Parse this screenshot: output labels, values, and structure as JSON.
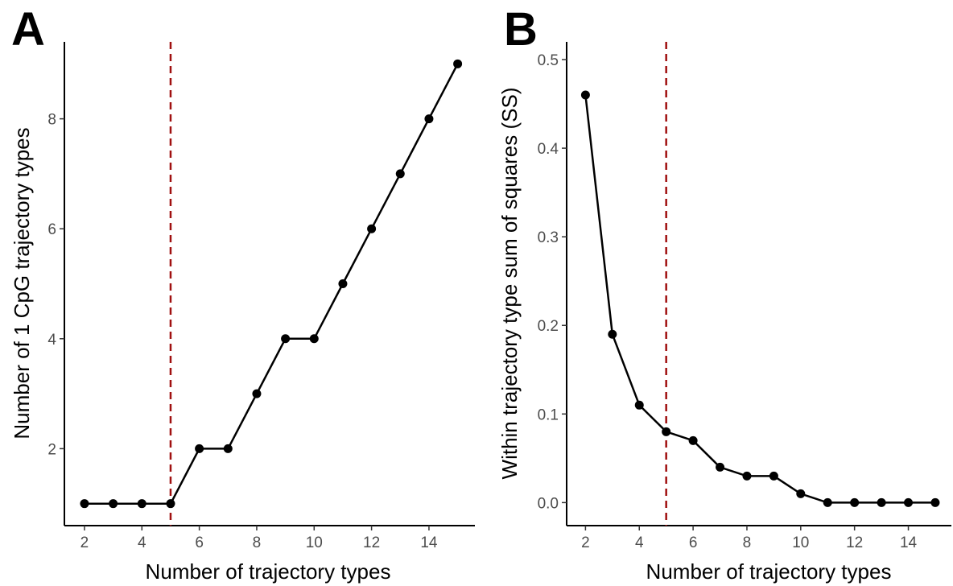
{
  "chart_data": [
    {
      "panel": "A",
      "type": "line",
      "xlabel": "Number of trajectory types",
      "ylabel": "Number of 1 CpG trajectory types",
      "x": [
        2,
        3,
        4,
        5,
        6,
        7,
        8,
        9,
        10,
        11,
        12,
        13,
        14,
        15
      ],
      "values": [
        1,
        1,
        1,
        1,
        2,
        2,
        3,
        4,
        4,
        5,
        6,
        7,
        8,
        9
      ],
      "xticks": [
        2,
        4,
        6,
        8,
        10,
        12,
        14
      ],
      "yticks": [
        2,
        4,
        6,
        8
      ],
      "xlim": [
        1.3,
        15.6
      ],
      "ylim": [
        0.6,
        9.4
      ],
      "vline_x": 5,
      "vline_color": "#a01010",
      "grid": false
    },
    {
      "panel": "B",
      "type": "line",
      "xlabel": "Number of trajectory types",
      "ylabel": "Within trajectory type sum of squares (SS)",
      "x": [
        2,
        3,
        4,
        5,
        6,
        7,
        8,
        9,
        10,
        11,
        12,
        13,
        14,
        15
      ],
      "values": [
        0.46,
        0.19,
        0.11,
        0.08,
        0.07,
        0.04,
        0.03,
        0.03,
        0.01,
        0.0,
        0.0,
        0.0,
        0.0,
        0.0
      ],
      "xticks": [
        2,
        4,
        6,
        8,
        10,
        12,
        14
      ],
      "yticks": [
        "0.0",
        "0.1",
        "0.2",
        "0.3",
        "0.4",
        "0.5"
      ],
      "xlim": [
        1.3,
        15.6
      ],
      "ylim": [
        -0.026,
        0.52
      ],
      "vline_x": 5,
      "vline_color": "#a01010",
      "grid": false
    }
  ]
}
